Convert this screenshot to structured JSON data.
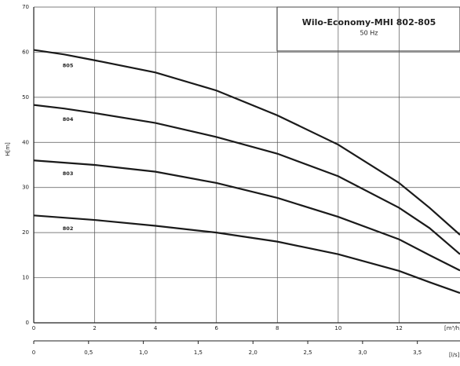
{
  "chart_data": {
    "type": "line",
    "title": "Wilo-Economy-MHI 802-805",
    "subtitle": "50 Hz",
    "y_label": "H[m]",
    "x_label": "[m³/h]",
    "x2_label": "[l/s]",
    "x": [
      0,
      1,
      2,
      4,
      6,
      8,
      10,
      12,
      13,
      14
    ],
    "series": [
      {
        "name": "805",
        "color": "#1a1a1a",
        "values": [
          60.5,
          59.5,
          58.2,
          55.5,
          51.5,
          46,
          39.5,
          31,
          25.5,
          19.5
        ]
      },
      {
        "name": "804",
        "color": "#1a1a1a",
        "values": [
          48.3,
          47.5,
          46.5,
          44.3,
          41.2,
          37.5,
          32.5,
          25.5,
          21,
          15.2
        ]
      },
      {
        "name": "803",
        "color": "#1a1a1a",
        "values": [
          36,
          35.5,
          35,
          33.5,
          31,
          27.7,
          23.5,
          18.5,
          15,
          11.6
        ]
      },
      {
        "name": "802",
        "color": "#1a1a1a",
        "values": [
          23.8,
          23.3,
          22.8,
          21.5,
          20,
          18,
          15.2,
          11.5,
          9,
          6.6
        ]
      }
    ],
    "xlim": [
      0,
      14
    ],
    "xticks": [
      0,
      2,
      4,
      6,
      8,
      10,
      12
    ],
    "ylim": [
      0,
      70
    ],
    "yticks": [
      0,
      10,
      20,
      30,
      40,
      50,
      60,
      70
    ],
    "x2lim": [
      0,
      3.889
    ],
    "x2ticks": [
      0,
      {
        "value": 0.5,
        "label": "0,5"
      },
      {
        "value": 1,
        "label": "1,0"
      },
      {
        "value": 1.5,
        "label": "1,5"
      },
      {
        "value": 2,
        "label": "2,0"
      },
      {
        "value": 2.5,
        "label": "2,5"
      },
      {
        "value": 3,
        "label": "3,0"
      },
      {
        "value": 3.5,
        "label": "3,5"
      }
    ],
    "grid": true
  }
}
